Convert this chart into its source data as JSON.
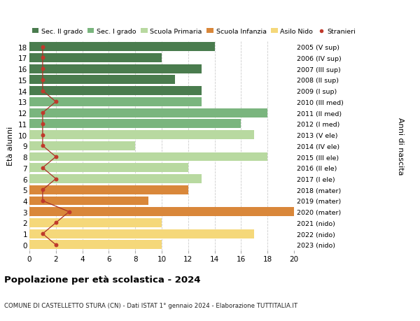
{
  "ages": [
    18,
    17,
    16,
    15,
    14,
    13,
    12,
    11,
    10,
    9,
    8,
    7,
    6,
    5,
    4,
    3,
    2,
    1,
    0
  ],
  "bar_values": [
    14,
    10,
    13,
    11,
    13,
    13,
    18,
    16,
    17,
    8,
    18,
    12,
    13,
    12,
    9,
    20,
    10,
    17,
    10
  ],
  "bar_colors": [
    "#4a7c4e",
    "#4a7c4e",
    "#4a7c4e",
    "#4a7c4e",
    "#4a7c4e",
    "#7ab57e",
    "#7ab57e",
    "#7ab57e",
    "#b8d9a0",
    "#b8d9a0",
    "#b8d9a0",
    "#b8d9a0",
    "#b8d9a0",
    "#d9873a",
    "#d9873a",
    "#d9873a",
    "#f5d87a",
    "#f5d87a",
    "#f5d87a"
  ],
  "stranieri_values": [
    1,
    1,
    1,
    1,
    1,
    2,
    1,
    1,
    1,
    1,
    2,
    1,
    2,
    1,
    1,
    3,
    2,
    1,
    2
  ],
  "right_labels": [
    "2005 (V sup)",
    "2006 (IV sup)",
    "2007 (III sup)",
    "2008 (II sup)",
    "2009 (I sup)",
    "2010 (III med)",
    "2011 (II med)",
    "2012 (I med)",
    "2013 (V ele)",
    "2014 (IV ele)",
    "2015 (III ele)",
    "2016 (II ele)",
    "2017 (I ele)",
    "2018 (mater)",
    "2019 (mater)",
    "2020 (mater)",
    "2021 (nido)",
    "2022 (nido)",
    "2023 (nido)"
  ],
  "xlim": [
    0,
    20
  ],
  "xticks": [
    0,
    2,
    4,
    6,
    8,
    10,
    12,
    14,
    16,
    18,
    20
  ],
  "ylabel_left": "Età alunni",
  "ylabel_right": "Anni di nascita",
  "title": "Popolazione per età scolastica - 2024",
  "subtitle": "COMUNE DI CASTELLETTO STURA (CN) - Dati ISTAT 1° gennaio 2024 - Elaborazione TUTTITALIA.IT",
  "legend_labels": [
    "Sec. II grado",
    "Sec. I grado",
    "Scuola Primaria",
    "Scuola Infanzia",
    "Asilo Nido",
    "Stranieri"
  ],
  "legend_colors": [
    "#4a7c4e",
    "#7ab57e",
    "#b8d9a0",
    "#d9873a",
    "#f5d87a",
    "#c0392b"
  ],
  "bar_height": 0.82,
  "grid_color": "#cccccc",
  "stranieri_color": "#c0392b",
  "stranieri_line_color": "#a93226",
  "bg_color": "#ffffff"
}
